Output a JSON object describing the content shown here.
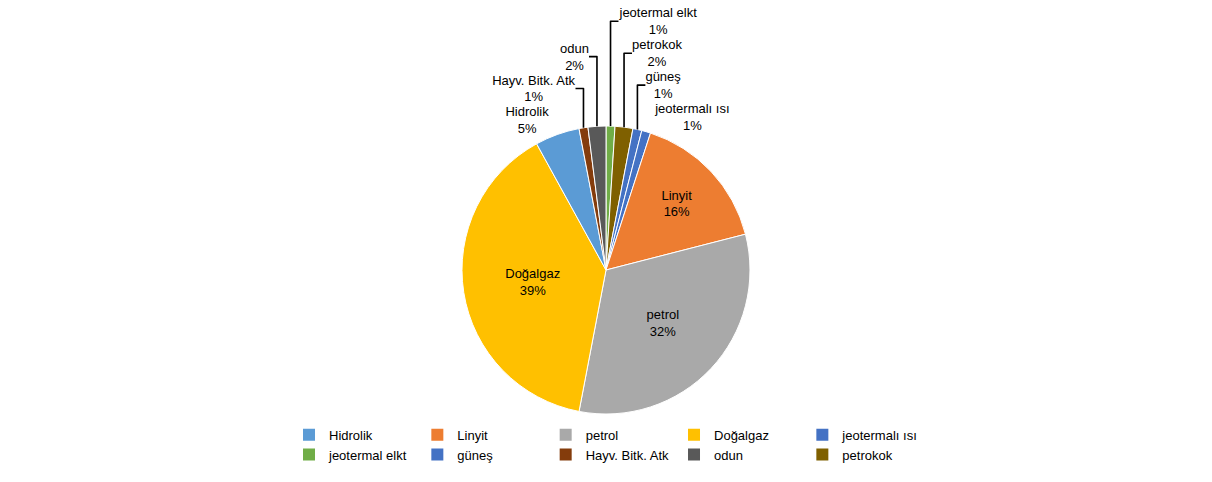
{
  "chart_data": {
    "type": "pie",
    "categories": [
      "jeotermal elkt",
      "petrokok",
      "güneş",
      "jeotermalı ısı",
      "Linyit",
      "petrol",
      "Doğalgaz",
      "Hidrolik",
      "Hayv. Bitk. Atk",
      "odun"
    ],
    "values": [
      1,
      2,
      1,
      1,
      16,
      32,
      39,
      5,
      1,
      2
    ],
    "value_labels": [
      "1%",
      "2%",
      "1%",
      "1%",
      "16%",
      "32%",
      "39%",
      "5%",
      "1%",
      "2%"
    ],
    "colors": [
      "#70AD47",
      "#7F6000",
      "#4472C4",
      "#4472C4",
      "#ED7D31",
      "#A9A9A9",
      "#FFC000",
      "#5B9BD5",
      "#843C0C",
      "#595959"
    ],
    "legend": "bottom",
    "legend_entries": [
      {
        "name": "Hidrolik",
        "color": "#5B9BD5"
      },
      {
        "name": "Linyit",
        "color": "#ED7D31"
      },
      {
        "name": "petrol",
        "color": "#A9A9A9"
      },
      {
        "name": "Doğalgaz",
        "color": "#FFC000"
      },
      {
        "name": "jeotermalı ısı",
        "color": "#4472C4"
      },
      {
        "name": "jeotermal elkt",
        "color": "#70AD47"
      },
      {
        "name": "güneş",
        "color": "#4472C4"
      },
      {
        "name": "Hayv. Bitk. Atk",
        "color": "#843C0C"
      },
      {
        "name": "odun",
        "color": "#595959"
      },
      {
        "name": "petrokok",
        "color": "#7F6000"
      }
    ]
  }
}
